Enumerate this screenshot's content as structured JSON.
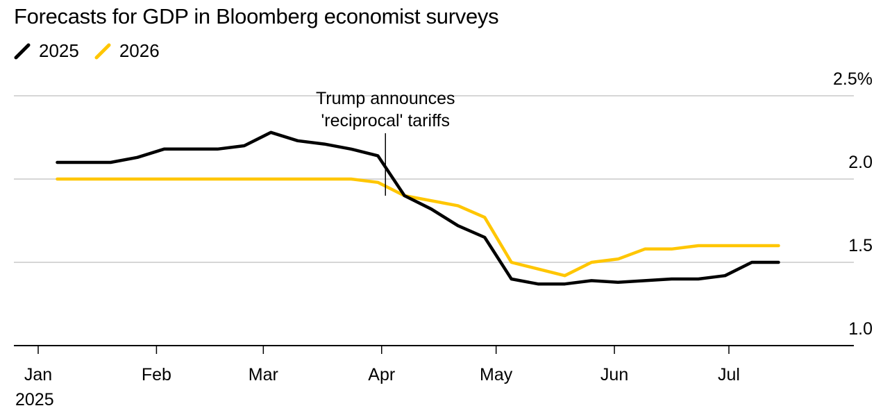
{
  "chart_data": {
    "type": "line",
    "title": "Forecasts for GDP in Bloomberg economist surveys",
    "xlabel": "",
    "ylabel": "",
    "ylim": [
      1.0,
      2.5
    ],
    "y_ticks": [
      {
        "value": 2.5,
        "label": "2.5%"
      },
      {
        "value": 2.0,
        "label": "2.0"
      },
      {
        "value": 1.5,
        "label": "1.5"
      },
      {
        "value": 1.0,
        "label": "1.0"
      }
    ],
    "grid": true,
    "legend_placement": "top-left",
    "x_ticks": [
      {
        "date": "2025-01-01",
        "label": "Jan",
        "sublabel": "2025"
      },
      {
        "date": "2025-02-01",
        "label": "Feb"
      },
      {
        "date": "2025-03-01",
        "label": "Mar"
      },
      {
        "date": "2025-04-01",
        "label": "Apr"
      },
      {
        "date": "2025-05-01",
        "label": "May"
      },
      {
        "date": "2025-06-01",
        "label": "Jun"
      },
      {
        "date": "2025-07-01",
        "label": "Jul"
      }
    ],
    "x": [
      "2025-01-06",
      "2025-01-13",
      "2025-01-20",
      "2025-01-27",
      "2025-02-03",
      "2025-02-10",
      "2025-02-17",
      "2025-02-24",
      "2025-03-03",
      "2025-03-10",
      "2025-03-17",
      "2025-03-24",
      "2025-03-31",
      "2025-04-07",
      "2025-04-14",
      "2025-04-21",
      "2025-04-28",
      "2025-05-05",
      "2025-05-12",
      "2025-05-19",
      "2025-05-26",
      "2025-06-02",
      "2025-06-09",
      "2025-06-16",
      "2025-06-23",
      "2025-06-30",
      "2025-07-07",
      "2025-07-14"
    ],
    "series": [
      {
        "name": "2025",
        "color": "#000000",
        "values": [
          2.1,
          2.1,
          2.1,
          2.13,
          2.18,
          2.18,
          2.18,
          2.2,
          2.28,
          2.23,
          2.21,
          2.18,
          2.14,
          1.9,
          1.82,
          1.72,
          1.65,
          1.4,
          1.37,
          1.37,
          1.39,
          1.38,
          1.39,
          1.4,
          1.4,
          1.42,
          1.5,
          1.5
        ]
      },
      {
        "name": "2026",
        "color": "#ffc600",
        "values": [
          2.0,
          2.0,
          2.0,
          2.0,
          2.0,
          2.0,
          2.0,
          2.0,
          2.0,
          2.0,
          2.0,
          2.0,
          1.98,
          1.9,
          1.87,
          1.84,
          1.77,
          1.5,
          1.46,
          1.42,
          1.5,
          1.52,
          1.58,
          1.58,
          1.6,
          1.6,
          1.6,
          1.6
        ]
      }
    ],
    "annotations": [
      {
        "date": "2025-04-02",
        "value": 1.9,
        "text_lines": [
          "Trump announces",
          "'reciprocal' tariffs"
        ]
      }
    ]
  }
}
